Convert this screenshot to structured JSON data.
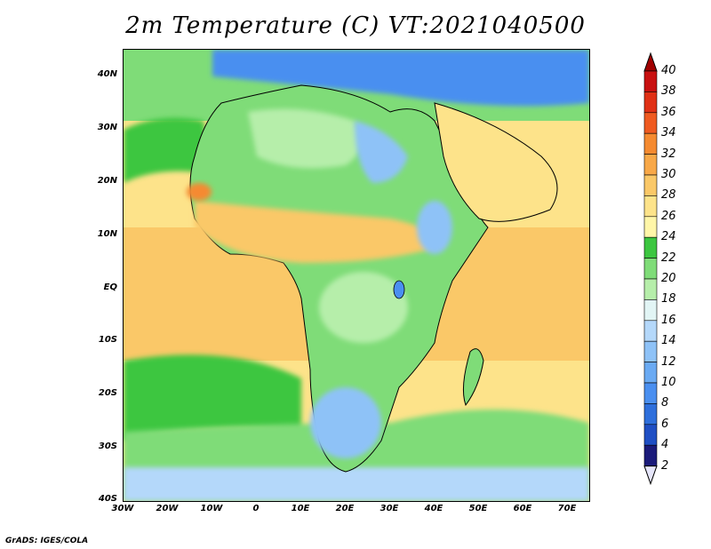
{
  "title": "2m Temperature (C) VT:2021040500",
  "credit": "GrADS: IGES/COLA",
  "map": {
    "region": "Africa",
    "lon_range": [
      -30,
      75
    ],
    "lat_range": [
      -40,
      45
    ],
    "lat_labels": [
      "40N",
      "30N",
      "20N",
      "10N",
      "EQ",
      "10S",
      "20S",
      "30S",
      "40S"
    ],
    "lon_labels": [
      "30W",
      "20W",
      "10W",
      "0",
      "10E",
      "20E",
      "30E",
      "40E",
      "50E",
      "60E",
      "70E"
    ]
  },
  "colorbar": {
    "labels": [
      "2",
      "4",
      "6",
      "8",
      "10",
      "12",
      "14",
      "16",
      "18",
      "20",
      "22",
      "24",
      "26",
      "28",
      "30",
      "32",
      "34",
      "36",
      "38",
      "40"
    ],
    "colors": [
      "#e6e6fa",
      "#1b1b7a",
      "#1f4fc4",
      "#2e6fdc",
      "#4a8ff0",
      "#6aaaf3",
      "#8ec2f7",
      "#b4d8fa",
      "#e2f5f5",
      "#b6eeaa",
      "#7fdc78",
      "#3cc640",
      "#fff6a8",
      "#fde38a",
      "#fac868",
      "#f8a848",
      "#f58a30",
      "#ef5a20",
      "#e03015",
      "#c81010",
      "#a00000"
    ]
  },
  "colors": {
    "ocean_tropical": "#fac868",
    "ocean_subtropical": "#fde38a",
    "ocean_south": "#3cc640",
    "land_cool": "#8ec2f7",
    "land_mild": "#7fdc78",
    "hot_spot": "#f58a30"
  }
}
